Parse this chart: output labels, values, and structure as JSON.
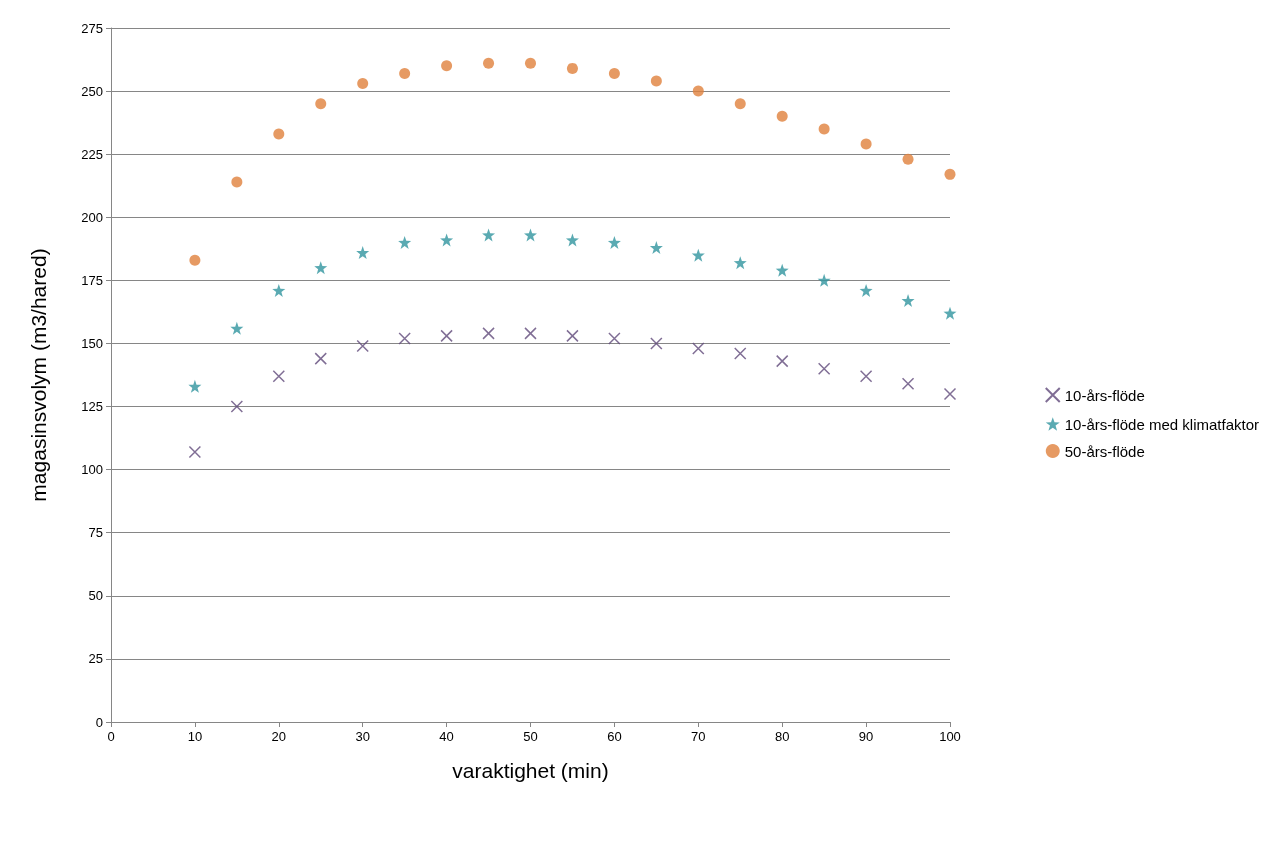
{
  "chart_data": {
    "type": "scatter",
    "xlabel": "varaktighet (min)",
    "ylabel": "magasinsvolym (m3/hared)",
    "x": [
      10,
      15,
      20,
      25,
      30,
      35,
      40,
      45,
      50,
      55,
      60,
      65,
      70,
      75,
      80,
      85,
      90,
      95,
      100
    ],
    "series": [
      {
        "name": "10-års-flöde",
        "color": "#604a7b",
        "marker": "cross",
        "values": [
          107,
          125,
          137,
          144,
          149,
          152,
          153,
          154,
          154,
          153,
          152,
          150,
          148,
          146,
          143,
          140,
          137,
          134,
          130
        ]
      },
      {
        "name": "10-års-flöde med klimatfaktor",
        "color": "#31959f",
        "marker": "star",
        "values": [
          133,
          156,
          171,
          180,
          186,
          190,
          191,
          193,
          193,
          191,
          190,
          188,
          185,
          182,
          179,
          175,
          171,
          167,
          162
        ]
      },
      {
        "name": "50-års-flöde",
        "color": "#e0813c",
        "marker": "circle",
        "values": [
          183,
          214,
          233,
          245,
          253,
          257,
          260,
          261,
          261,
          259,
          257,
          254,
          250,
          245,
          240,
          235,
          229,
          223,
          217
        ]
      }
    ],
    "xlim": [
      0,
      100
    ],
    "xticks": [
      0,
      10,
      20,
      30,
      40,
      50,
      60,
      70,
      80,
      90,
      100
    ],
    "ylim": [
      0,
      275
    ],
    "yticks": [
      0,
      25,
      50,
      75,
      100,
      125,
      150,
      175,
      200,
      225,
      250,
      275
    ],
    "grid": "y",
    "legend": "right"
  }
}
